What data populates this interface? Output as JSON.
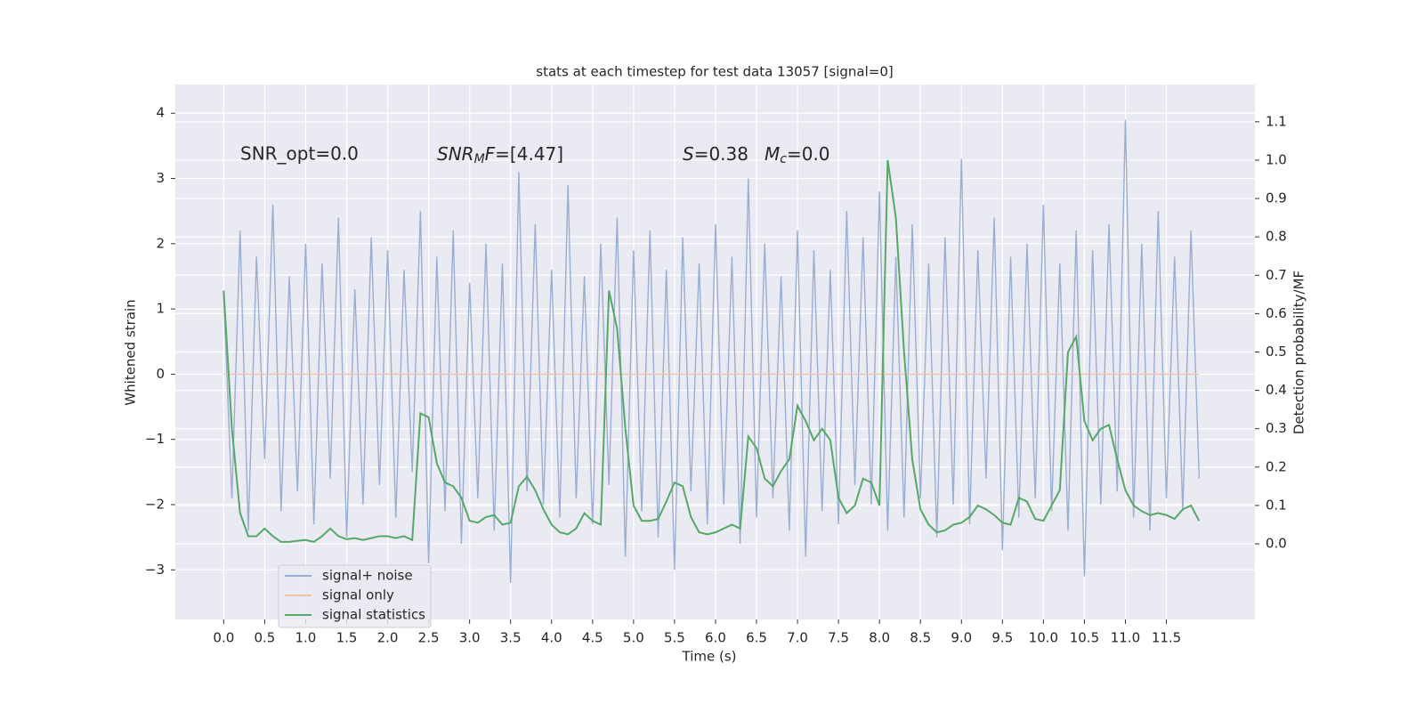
{
  "chart_data": {
    "type": "line",
    "title": "stats at each timestep for test data 13057 [signal=0]",
    "xlabel": "Time (s)",
    "ylabel": "Whitened strain",
    "y2label": "Detection probability/MF",
    "annotations": [
      {
        "text": "SNR_opt=0.0"
      },
      {
        "parts": [
          "SNR",
          "M",
          "F",
          "=[4.47]"
        ]
      },
      {
        "parts": [
          "S",
          "=0.38"
        ]
      },
      {
        "parts": [
          "M",
          "c",
          "=0.0"
        ]
      }
    ],
    "grid": true,
    "legend": "lower left",
    "xlim": [
      -0.59,
      12.58
    ],
    "ylim": [
      -3.76,
      4.44
    ],
    "y2lim": [
      -0.197,
      1.197
    ],
    "xticks": [
      {
        "value": 0,
        "label": "0.0"
      },
      0.5,
      {
        "value": 1,
        "label": "1.0"
      },
      1.5,
      {
        "value": 2,
        "label": "2.0"
      },
      2.5,
      {
        "value": 3,
        "label": "3.0"
      },
      3.5,
      {
        "value": 4,
        "label": "4.0"
      },
      4.5,
      {
        "value": 5,
        "label": "5.0"
      },
      5.5,
      {
        "value": 6,
        "label": "6.0"
      },
      6.5,
      {
        "value": 7,
        "label": "7.0"
      },
      7.5,
      {
        "value": 8,
        "label": "8.0"
      },
      8.5,
      {
        "value": 9,
        "label": "9.0"
      },
      9.5,
      {
        "value": 10,
        "label": "10.0"
      },
      10.5,
      {
        "value": 11,
        "label": "11.0"
      },
      11.5
    ],
    "yticks": [
      {
        "value": -3,
        "label": "−3"
      },
      {
        "value": -2,
        "label": "−2"
      },
      {
        "value": -1,
        "label": "−1"
      },
      0,
      1,
      2,
      3,
      4
    ],
    "y2ticks": [
      {
        "value": 0,
        "label": "0.0"
      },
      0.1,
      0.2,
      0.3,
      0.4,
      0.5,
      0.6,
      0.7,
      0.8,
      0.9,
      {
        "value": 1,
        "label": "1.0"
      },
      1.1
    ],
    "x": [
      0.0,
      0.1,
      0.2,
      0.3,
      0.4,
      0.5,
      0.6,
      0.7,
      0.8,
      0.9,
      1.0,
      1.1,
      1.2,
      1.3,
      1.4,
      1.5,
      1.6,
      1.7,
      1.8,
      1.9,
      2.0,
      2.1,
      2.2,
      2.3,
      2.4,
      2.5,
      2.6,
      2.7,
      2.8,
      2.9,
      3.0,
      3.1,
      3.2,
      3.3,
      3.4,
      3.5,
      3.6,
      3.7,
      3.8,
      3.9,
      4.0,
      4.1,
      4.2,
      4.3,
      4.4,
      4.5,
      4.6,
      4.7,
      4.8,
      4.9,
      5.0,
      5.1,
      5.2,
      5.3,
      5.4,
      5.5,
      5.6,
      5.7,
      5.8,
      5.9,
      6.0,
      6.1,
      6.2,
      6.3,
      6.4,
      6.5,
      6.6,
      6.7,
      6.8,
      6.9,
      7.0,
      7.1,
      7.2,
      7.3,
      7.4,
      7.5,
      7.6,
      7.7,
      7.8,
      7.9,
      8.0,
      8.1,
      8.2,
      8.3,
      8.4,
      8.5,
      8.6,
      8.7,
      8.8,
      8.9,
      9.0,
      9.1,
      9.2,
      9.3,
      9.4,
      9.5,
      9.6,
      9.7,
      9.8,
      9.9,
      10.0,
      10.1,
      10.2,
      10.3,
      10.4,
      10.5,
      10.6,
      10.7,
      10.8,
      10.9,
      11.0,
      11.1,
      11.2,
      11.3,
      11.4,
      11.5,
      11.6,
      11.7,
      11.8,
      11.9
    ],
    "series": [
      {
        "name": "signal+ noise",
        "color": "#9aadd3",
        "values": [
          1.2,
          -1.9,
          2.2,
          -2.4,
          1.8,
          -1.3,
          2.6,
          -2.1,
          1.5,
          -1.8,
          2.0,
          -2.3,
          1.7,
          -1.6,
          2.4,
          -2.5,
          1.3,
          -2.0,
          2.1,
          -1.7,
          1.9,
          -2.2,
          1.6,
          -1.5,
          2.5,
          -2.9,
          1.8,
          -2.1,
          2.2,
          -2.6,
          1.4,
          -1.9,
          2.0,
          -2.4,
          1.7,
          -3.2,
          3.1,
          -1.8,
          2.3,
          -2.0,
          1.6,
          -2.2,
          2.9,
          -1.9,
          1.5,
          -2.3,
          2.0,
          -1.7,
          2.4,
          -2.8,
          1.9,
          -2.1,
          2.2,
          -2.5,
          1.6,
          -3.0,
          2.1,
          -1.8,
          1.7,
          -2.3,
          2.3,
          -2.0,
          1.8,
          -2.6,
          3.0,
          -2.2,
          2.0,
          -1.9,
          1.5,
          -2.4,
          2.2,
          -2.8,
          1.9,
          -2.1,
          1.6,
          -2.3,
          2.5,
          -1.7,
          2.1,
          -2.0,
          2.8,
          -2.4,
          1.8,
          -2.2,
          2.3,
          -1.9,
          1.7,
          -2.5,
          2.1,
          -2.0,
          3.3,
          -2.3,
          1.9,
          -1.6,
          2.4,
          -2.7,
          1.8,
          -2.2,
          2.0,
          -1.9,
          2.6,
          -2.1,
          1.7,
          -2.4,
          2.2,
          -3.1,
          1.9,
          -2.0,
          2.3,
          -1.8,
          3.9,
          -2.2,
          2.0,
          -2.4,
          2.5,
          -1.9,
          1.8,
          -2.1,
          2.2,
          -1.6
        ]
      },
      {
        "name": "signal only",
        "color": "#eec1a8",
        "values": [
          0,
          0,
          0,
          0,
          0,
          0,
          0,
          0,
          0,
          0,
          0,
          0,
          0,
          0,
          0,
          0,
          0,
          0,
          0,
          0,
          0,
          0,
          0,
          0,
          0,
          0,
          0,
          0,
          0,
          0,
          0,
          0,
          0,
          0,
          0,
          0,
          0,
          0,
          0,
          0,
          0,
          0,
          0,
          0,
          0,
          0,
          0,
          0,
          0,
          0,
          0,
          0,
          0,
          0,
          0,
          0,
          0,
          0,
          0,
          0,
          0,
          0,
          0,
          0,
          0,
          0,
          0,
          0,
          0,
          0,
          0,
          0,
          0,
          0,
          0,
          0,
          0,
          0,
          0,
          0,
          0,
          0,
          0,
          0,
          0,
          0,
          0,
          0,
          0,
          0,
          0,
          0,
          0,
          0,
          0,
          0,
          0,
          0,
          0,
          0,
          0,
          0,
          0,
          0,
          0,
          0,
          0,
          0,
          0,
          0,
          0,
          0,
          0,
          0,
          0,
          0,
          0,
          0,
          0,
          0
        ]
      },
      {
        "name": "signal statistics",
        "color": "#55a868",
        "axis": "y2",
        "values": [
          0.66,
          0.3,
          0.08,
          0.02,
          0.02,
          0.04,
          0.02,
          0.005,
          0.005,
          0.008,
          0.01,
          0.005,
          0.02,
          0.04,
          0.02,
          0.012,
          0.015,
          0.01,
          0.015,
          0.02,
          0.02,
          0.015,
          0.02,
          0.01,
          0.34,
          0.33,
          0.21,
          0.16,
          0.15,
          0.12,
          0.06,
          0.055,
          0.07,
          0.075,
          0.05,
          0.055,
          0.15,
          0.175,
          0.14,
          0.09,
          0.05,
          0.03,
          0.025,
          0.04,
          0.08,
          0.06,
          0.05,
          0.66,
          0.56,
          0.3,
          0.1,
          0.06,
          0.06,
          0.065,
          0.11,
          0.16,
          0.15,
          0.07,
          0.03,
          0.025,
          0.03,
          0.04,
          0.05,
          0.04,
          0.28,
          0.25,
          0.17,
          0.15,
          0.19,
          0.22,
          0.36,
          0.32,
          0.27,
          0.3,
          0.27,
          0.12,
          0.08,
          0.1,
          0.17,
          0.16,
          0.1,
          1.0,
          0.85,
          0.5,
          0.22,
          0.09,
          0.05,
          0.03,
          0.035,
          0.05,
          0.055,
          0.07,
          0.1,
          0.09,
          0.075,
          0.055,
          0.05,
          0.12,
          0.11,
          0.065,
          0.06,
          0.1,
          0.14,
          0.5,
          0.54,
          0.32,
          0.27,
          0.3,
          0.31,
          0.22,
          0.14,
          0.1,
          0.085,
          0.075,
          0.08,
          0.075,
          0.065,
          0.09,
          0.1,
          0.06
        ]
      }
    ]
  }
}
